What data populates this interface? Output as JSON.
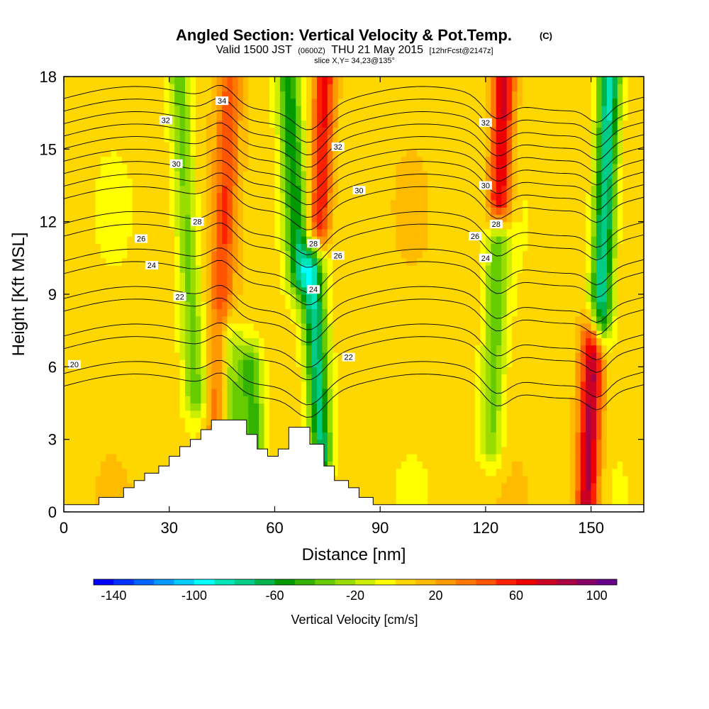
{
  "header": {
    "title_main": "Angled Section: Vertical Velocity & Pot.Temp.",
    "title_unit": "(C)",
    "valid_prefix": "Valid 1500 JST",
    "valid_z": "(0600Z)",
    "valid_date": "THU 21 May 2015",
    "valid_fcst": "[12hrFcst@2147z]",
    "slice": "slice X,Y= 34,23@135°"
  },
  "chart_data": {
    "type": "heatmap",
    "title": "Angled Section: Vertical Velocity & Pot.Temp. (C)",
    "xlabel": "Distance [nm]",
    "ylabel": "Height [Kft MSL]",
    "xlim": [
      0,
      165
    ],
    "ylim": [
      0,
      18
    ],
    "xticks": [
      0,
      30,
      60,
      90,
      120,
      150
    ],
    "yticks": [
      0,
      3,
      6,
      9,
      12,
      15,
      18
    ],
    "background_w": 5,
    "updraft_bands": [
      {
        "name": "downdraft-36",
        "x_center": 36,
        "y_range": [
          5,
          18
        ],
        "w": -40
      },
      {
        "name": "downdraft-48",
        "x_center": 46,
        "y_range": [
          3,
          7
        ],
        "w": -40
      },
      {
        "name": "downdraft-52",
        "x_center": 52,
        "y_range": [
          2.5,
          6
        ],
        "w": -50
      },
      {
        "name": "downdraft-67",
        "x_center": 67,
        "y_range": [
          10,
          18
        ],
        "w": -60
      },
      {
        "name": "downdraft-71",
        "x_center": 71,
        "y_range": [
          2.5,
          10
        ],
        "w": -80
      },
      {
        "name": "downdraft-123",
        "x_center": 123,
        "y_range": [
          3,
          11
        ],
        "w": -40
      },
      {
        "name": "downdraft-153",
        "x_center": 153,
        "y_range": [
          8,
          18
        ],
        "w": -90
      },
      {
        "name": "updraft-45",
        "x_center": 45,
        "y_range": [
          3,
          18
        ],
        "w": 40
      },
      {
        "name": "updraft-72",
        "x_center": 72,
        "y_range": [
          12,
          18
        ],
        "w": 60
      },
      {
        "name": "updraft-123",
        "x_center": 123,
        "y_range": [
          13,
          18
        ],
        "w": 70
      },
      {
        "name": "updraft-151",
        "x_center": 151,
        "y_range": [
          0.5,
          7
        ],
        "w": 80
      }
    ],
    "isentropes": [
      20,
      22,
      24,
      26,
      28,
      30,
      32,
      34
    ],
    "isentrope_labels": [
      {
        "text": "34",
        "x": 45,
        "y": 17
      },
      {
        "text": "32",
        "x": 29,
        "y": 16.2
      },
      {
        "text": "32",
        "x": 78,
        "y": 15.1
      },
      {
        "text": "32",
        "x": 120,
        "y": 16.1
      },
      {
        "text": "30",
        "x": 32,
        "y": 14.4
      },
      {
        "text": "30",
        "x": 84,
        "y": 13.3
      },
      {
        "text": "30",
        "x": 120,
        "y": 13.5
      },
      {
        "text": "28",
        "x": 38,
        "y": 12
      },
      {
        "text": "28",
        "x": 71,
        "y": 11.1
      },
      {
        "text": "28",
        "x": 123,
        "y": 11.9
      },
      {
        "text": "26",
        "x": 22,
        "y": 11.3
      },
      {
        "text": "26",
        "x": 78,
        "y": 10.6
      },
      {
        "text": "26",
        "x": 117,
        "y": 11.4
      },
      {
        "text": "24",
        "x": 25,
        "y": 10.2
      },
      {
        "text": "24",
        "x": 71,
        "y": 9.2
      },
      {
        "text": "24",
        "x": 120,
        "y": 10.5
      },
      {
        "text": "22",
        "x": 33,
        "y": 8.9
      },
      {
        "text": "22",
        "x": 81,
        "y": 6.4
      },
      {
        "text": "20",
        "x": 3,
        "y": 6.1
      }
    ],
    "terrain": [
      [
        0,
        0.3
      ],
      [
        10,
        0.3
      ],
      [
        10,
        0.6
      ],
      [
        17,
        0.6
      ],
      [
        17,
        1.0
      ],
      [
        20,
        1.0
      ],
      [
        20,
        1.3
      ],
      [
        23,
        1.3
      ],
      [
        23,
        1.6
      ],
      [
        27,
        1.6
      ],
      [
        27,
        1.9
      ],
      [
        30,
        1.9
      ],
      [
        30,
        2.3
      ],
      [
        33,
        2.3
      ],
      [
        33,
        2.7
      ],
      [
        36,
        2.7
      ],
      [
        36,
        3.0
      ],
      [
        39,
        3.0
      ],
      [
        39,
        3.4
      ],
      [
        42,
        3.4
      ],
      [
        42,
        3.8
      ],
      [
        52,
        3.8
      ],
      [
        52,
        3.2
      ],
      [
        55,
        3.2
      ],
      [
        55,
        2.6
      ],
      [
        58,
        2.6
      ],
      [
        58,
        2.3
      ],
      [
        61,
        2.3
      ],
      [
        61,
        2.6
      ],
      [
        64,
        2.6
      ],
      [
        64,
        3.5
      ],
      [
        70,
        3.5
      ],
      [
        70,
        2.8
      ],
      [
        74,
        2.8
      ],
      [
        74,
        1.9
      ],
      [
        77,
        1.9
      ],
      [
        77,
        1.3
      ],
      [
        81,
        1.3
      ],
      [
        81,
        1.0
      ],
      [
        84,
        1.0
      ],
      [
        84,
        0.6
      ],
      [
        88,
        0.6
      ],
      [
        88,
        0.3
      ],
      [
        165,
        0.3
      ]
    ]
  },
  "colorbar": {
    "label": "Vertical Velocity [cm/s]",
    "ticks": [
      "-140",
      "-100",
      "-60",
      "-20",
      "20",
      "60",
      "100"
    ],
    "tick_values": [
      -140,
      -100,
      -60,
      -20,
      20,
      60,
      100
    ],
    "range": [
      -150,
      110
    ],
    "step": 10,
    "colors": [
      "#0000ff",
      "#0033ff",
      "#0066ff",
      "#0099ff",
      "#00ccff",
      "#00ffff",
      "#00e6b8",
      "#00cc88",
      "#00b34d",
      "#009900",
      "#33b300",
      "#66cc00",
      "#99dd00",
      "#ccee00",
      "#ffff00",
      "#ffd700",
      "#ffbb00",
      "#ff9900",
      "#ff7700",
      "#ff5500",
      "#ff2200",
      "#ee0000",
      "#cc0022",
      "#aa0044",
      "#880066",
      "#660088"
    ]
  }
}
